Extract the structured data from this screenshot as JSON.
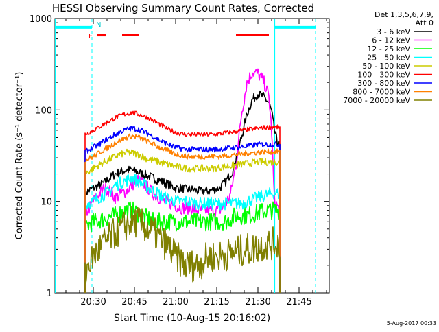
{
  "chart_data": {
    "type": "line",
    "title": "HESSI Observing Summary Count Rates, Corrected",
    "xlabel": "Start Time (10-Aug-15 20:16:02)",
    "ylabel": "Corrected Count Rate (s⁻¹ detector⁻¹)",
    "footer": "5-Aug-2017 00:33",
    "x_unit": "minutes after 20:16:02 UT",
    "xlim": [
      0,
      100
    ],
    "ylim": [
      1,
      1000
    ],
    "yscale": "log",
    "x_ticks": [
      {
        "x": 14,
        "label": "20:30"
      },
      {
        "x": 29,
        "label": "20:45"
      },
      {
        "x": 44,
        "label": "21:00"
      },
      {
        "x": 59,
        "label": "21:15"
      },
      {
        "x": 74,
        "label": "21:30"
      },
      {
        "x": 89,
        "label": "21:45"
      }
    ],
    "y_ticks": [
      {
        "y": 1,
        "label": "1"
      },
      {
        "y": 10,
        "label": "10"
      },
      {
        "y": 100,
        "label": "100"
      },
      {
        "y": 1000,
        "label": "1000"
      }
    ],
    "legend": {
      "title_line1": "Det 1,3,5,6,7,9,",
      "title_line2": "Att 0",
      "placement": "right"
    },
    "series": [
      {
        "name": "3 - 6 keV",
        "color": "#000000",
        "x": [
          11,
          12,
          14,
          16,
          18,
          20,
          22,
          24,
          26,
          28,
          30,
          32,
          34,
          36,
          38,
          40,
          42,
          44,
          46,
          48,
          50,
          52,
          54,
          56,
          58,
          60,
          62,
          64,
          65,
          66,
          68,
          70,
          72,
          74,
          76,
          78,
          79,
          80,
          81,
          82
        ],
        "y": [
          12,
          13,
          14,
          15,
          16,
          18,
          20,
          21,
          22,
          22,
          21,
          20,
          19,
          18,
          17,
          16,
          15,
          14,
          14,
          13.5,
          13.5,
          13,
          13,
          13,
          13.5,
          14,
          16,
          20,
          22,
          30,
          50,
          90,
          130,
          150,
          140,
          120,
          95,
          60,
          45,
          40
        ]
      },
      {
        "name": "6 - 12 keV",
        "color": "#ff00ff",
        "x": [
          11,
          12,
          14,
          16,
          18,
          20,
          22,
          24,
          26,
          28,
          30,
          32,
          34,
          36,
          38,
          40,
          42,
          44,
          46,
          48,
          50,
          52,
          54,
          56,
          58,
          60,
          62,
          64,
          66,
          68,
          70,
          72,
          74,
          76,
          78,
          79,
          80,
          81,
          82
        ],
        "y": [
          7,
          8,
          10,
          12,
          14,
          13,
          11,
          12,
          13,
          15,
          17,
          16,
          14,
          12,
          11,
          10,
          9.5,
          9,
          8.5,
          8.5,
          8.5,
          8,
          8,
          8,
          8,
          8,
          9,
          12,
          25,
          90,
          200,
          260,
          250,
          210,
          140,
          60,
          10,
          9,
          8
        ]
      },
      {
        "name": "12 - 25 keV",
        "color": "#00ff00",
        "x": [
          11,
          12,
          14,
          16,
          18,
          20,
          22,
          24,
          26,
          28,
          30,
          32,
          34,
          36,
          38,
          40,
          42,
          44,
          46,
          48,
          50,
          52,
          54,
          56,
          58,
          60,
          62,
          64,
          66,
          68,
          70,
          72,
          74,
          76,
          78,
          80,
          82
        ],
        "y": [
          5,
          5.5,
          6,
          6.2,
          6.5,
          6.8,
          7,
          7.5,
          8,
          8,
          7.5,
          7,
          6.5,
          6,
          6,
          6,
          6,
          6,
          6,
          6,
          6,
          6,
          6,
          6,
          6,
          6,
          6,
          6.5,
          7,
          7,
          7,
          7.2,
          7.5,
          7.8,
          8,
          8,
          8
        ]
      },
      {
        "name": "25 - 50 keV",
        "color": "#00ffff",
        "x": [
          11,
          12,
          14,
          16,
          18,
          20,
          22,
          24,
          26,
          28,
          30,
          32,
          34,
          36,
          38,
          40,
          42,
          44,
          46,
          48,
          50,
          52,
          54,
          56,
          58,
          60,
          62,
          64,
          66,
          68,
          70,
          72,
          74,
          76,
          78,
          80,
          82
        ],
        "y": [
          9,
          9.5,
          10,
          11,
          12,
          13,
          15,
          16,
          17,
          18,
          17,
          15.5,
          14,
          13,
          12,
          11,
          10.5,
          10,
          10,
          10,
          9.8,
          9.5,
          9.5,
          9.5,
          9.5,
          9.5,
          9.5,
          9.5,
          9.5,
          9.5,
          10,
          10.5,
          11,
          11.5,
          12,
          12.5,
          12
        ]
      },
      {
        "name": "50 - 100 keV",
        "color": "#cccc00",
        "x": [
          11,
          12,
          14,
          16,
          18,
          20,
          22,
          24,
          26,
          28,
          30,
          32,
          34,
          36,
          38,
          40,
          42,
          44,
          46,
          48,
          50,
          52,
          54,
          56,
          58,
          60,
          62,
          64,
          66,
          68,
          70,
          72,
          74,
          76,
          78,
          80,
          82
        ],
        "y": [
          20,
          21,
          23,
          25,
          27,
          29,
          31,
          33,
          34,
          34,
          33,
          31,
          29,
          28,
          27,
          26,
          25,
          24,
          23.5,
          23,
          23,
          23,
          23,
          23,
          23,
          23.5,
          24,
          24.5,
          25,
          25.5,
          26,
          26.5,
          27,
          27,
          27,
          27,
          27
        ]
      },
      {
        "name": "100 - 300 keV",
        "color": "#ff0000",
        "x": [
          11,
          12,
          14,
          16,
          18,
          20,
          22,
          24,
          26,
          28,
          30,
          32,
          34,
          36,
          38,
          40,
          42,
          44,
          46,
          48,
          50,
          52,
          54,
          56,
          58,
          60,
          62,
          64,
          66,
          68,
          70,
          72,
          74,
          76,
          78,
          80,
          82
        ],
        "y": [
          55,
          56,
          60,
          65,
          70,
          76,
          82,
          87,
          91,
          93,
          91,
          87,
          82,
          76,
          70,
          65,
          60,
          57,
          55,
          54,
          54,
          54,
          54,
          54,
          54,
          55,
          56,
          57,
          58,
          60,
          61,
          62,
          63,
          64,
          65,
          65,
          65
        ]
      },
      {
        "name": "300 - 800 keV",
        "color": "#0000ff",
        "x": [
          11,
          12,
          14,
          16,
          18,
          20,
          22,
          24,
          26,
          28,
          30,
          32,
          34,
          36,
          38,
          40,
          42,
          44,
          46,
          48,
          50,
          52,
          54,
          56,
          58,
          60,
          62,
          64,
          66,
          68,
          70,
          72,
          74,
          76,
          78,
          80,
          82
        ],
        "y": [
          35,
          36,
          39,
          42,
          46,
          50,
          54,
          58,
          61,
          63,
          62,
          59,
          55,
          51,
          47,
          44,
          41,
          39,
          38,
          37,
          37,
          37,
          37,
          37,
          37,
          37.5,
          38,
          38.5,
          39,
          39.5,
          40,
          41,
          42,
          42,
          42,
          42,
          42
        ]
      },
      {
        "name": "800 - 7000 keV",
        "color": "#ff8000",
        "x": [
          11,
          12,
          14,
          16,
          18,
          20,
          22,
          24,
          26,
          28,
          30,
          32,
          34,
          36,
          38,
          40,
          42,
          44,
          46,
          48,
          50,
          52,
          54,
          56,
          58,
          60,
          62,
          64,
          66,
          68,
          70,
          72,
          74,
          76,
          78,
          80,
          82
        ],
        "y": [
          28,
          29,
          31,
          34,
          37,
          40,
          44,
          47,
          50,
          52,
          51,
          48,
          45,
          42,
          39,
          37,
          35,
          33,
          32,
          31,
          31,
          31,
          31,
          31,
          31,
          31,
          31.5,
          32,
          32.5,
          33,
          33.5,
          34,
          34.5,
          35,
          35,
          35,
          35
        ]
      },
      {
        "name": "7000 - 20000 keV",
        "color": "#808000",
        "x": [
          11,
          12,
          14,
          16,
          18,
          20,
          22,
          24,
          26,
          28,
          30,
          32,
          34,
          36,
          38,
          40,
          42,
          44,
          46,
          48,
          50,
          52,
          54,
          56,
          58,
          60,
          62,
          64,
          66,
          68,
          70,
          72,
          74,
          76,
          78,
          80,
          82
        ],
        "y": [
          1.5,
          2,
          2.5,
          3,
          3.5,
          4,
          4.5,
          5,
          5.5,
          6,
          6,
          5.5,
          5,
          4.5,
          4,
          3.5,
          3,
          2.5,
          2.2,
          2,
          2,
          2,
          2.2,
          2.5,
          2.5,
          2.5,
          2.6,
          2.7,
          2.8,
          2.9,
          3,
          3,
          3.2,
          3.3,
          3.4,
          3.5,
          3.5
        ]
      }
    ],
    "annotations": {
      "flare_label": "F",
      "n_label": "N",
      "flare_intervals": [
        [
          15.5,
          18.5
        ],
        [
          24.5,
          30.5
        ],
        [
          66,
          78
        ]
      ],
      "cyan_bar_segments": [
        [
          0,
          13.5
        ],
        [
          80,
          95
        ]
      ],
      "cyan_bar_level": 800,
      "cyan_vertical_solid_x": [
        0,
        80
      ],
      "cyan_vertical_dashed_x": [
        13.5,
        95
      ],
      "red_bar_level": 660
    }
  }
}
